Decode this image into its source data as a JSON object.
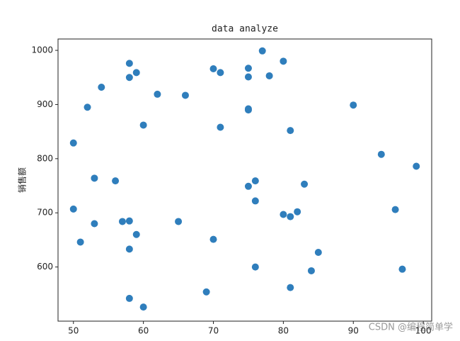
{
  "chart_data": {
    "type": "scatter",
    "title": "data analyze",
    "ylabel": "销售额",
    "watermark": "CSDN @编程简单学",
    "color": "#2f7ebc",
    "x": [
      58,
      59,
      58,
      54,
      52,
      62,
      66,
      60,
      50,
      53,
      56,
      50,
      51,
      53,
      57,
      58,
      59,
      58,
      65,
      58,
      60,
      70,
      71,
      75,
      75,
      77,
      78,
      80,
      75,
      75,
      71,
      81,
      90,
      94,
      99,
      75,
      76,
      83,
      76,
      80,
      81,
      82,
      96,
      70,
      85,
      76,
      84,
      97,
      69,
      81
    ],
    "y": [
      976,
      959,
      950,
      932,
      895,
      919,
      917,
      862,
      829,
      764,
      759,
      707,
      646,
      680,
      684,
      685,
      660,
      633,
      684,
      542,
      526,
      966,
      959,
      967,
      951,
      999,
      953,
      980,
      892,
      890,
      858,
      852,
      899,
      808,
      786,
      749,
      759,
      753,
      722,
      697,
      693,
      702,
      706,
      651,
      627,
      600,
      593,
      596,
      554,
      562
    ],
    "xlim": [
      47.8,
      101.2
    ],
    "ylim": [
      500,
      1021
    ],
    "xticks": [
      50,
      60,
      70,
      80,
      90,
      100
    ],
    "yticks": [
      600,
      700,
      800,
      900,
      1000
    ]
  }
}
